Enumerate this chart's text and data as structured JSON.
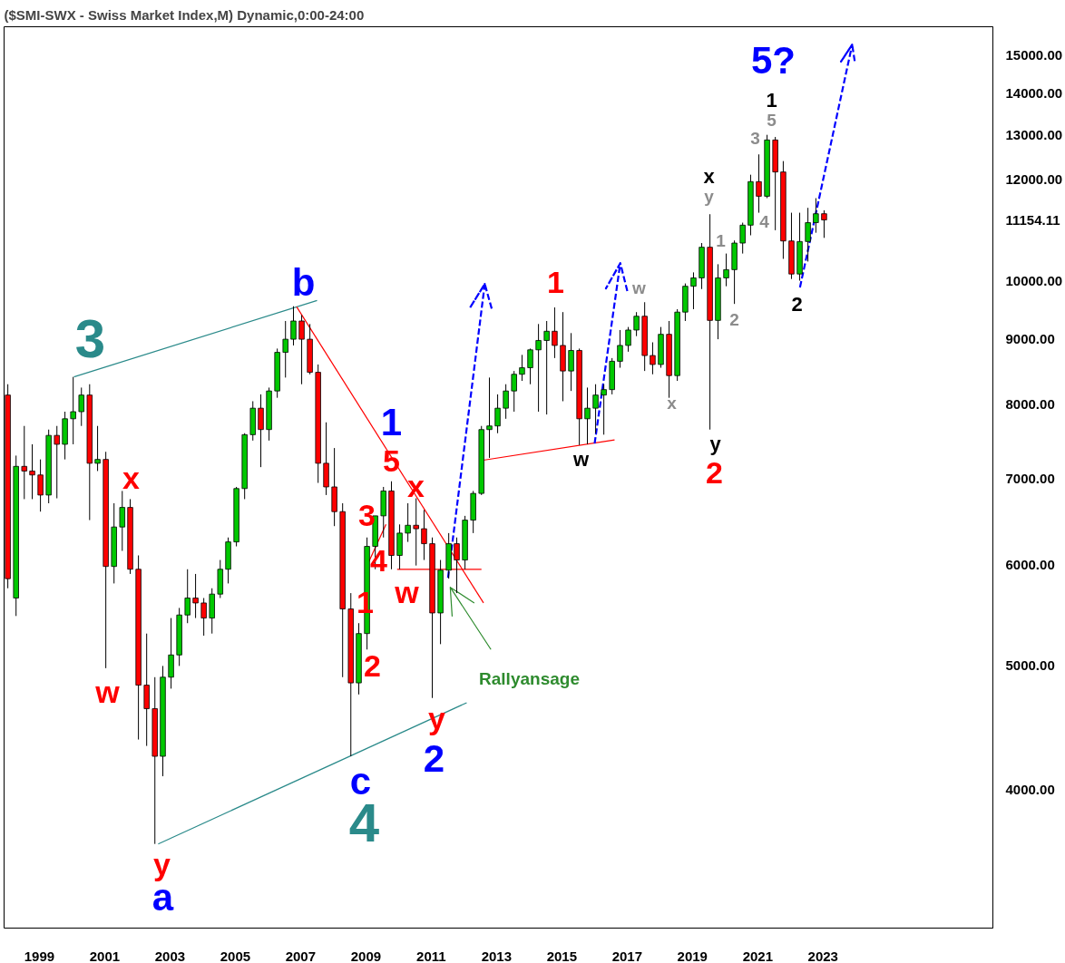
{
  "chart_data": {
    "type": "candlestick",
    "title": "($SMI-SWX - Swiss Market Index,M) Dynamic,0:00-24:00",
    "x": [
      "1998-08",
      "1998-11",
      "1999-02",
      "1999-05",
      "1999-08",
      "1999-11",
      "2000-02",
      "2000-05",
      "2000-08",
      "2000-11",
      "2001-02",
      "2001-05",
      "2001-08",
      "2001-11",
      "2002-02",
      "2002-05",
      "2002-08",
      "2002-11",
      "2003-02",
      "2003-05",
      "2003-08",
      "2003-11",
      "2004-02",
      "2004-05",
      "2004-08",
      "2004-11",
      "2005-02",
      "2005-05",
      "2005-08",
      "2005-11",
      "2006-02",
      "2006-05",
      "2006-08",
      "2006-11",
      "2007-02",
      "2007-05",
      "2007-08",
      "2007-11",
      "2008-02",
      "2008-05",
      "2008-08",
      "2008-11",
      "2009-02",
      "2009-05",
      "2009-08",
      "2009-11",
      "2010-02",
      "2010-05",
      "2010-08",
      "2010-11",
      "2011-02",
      "2011-05",
      "2011-08",
      "2011-11",
      "2012-02",
      "2012-05",
      "2012-08",
      "2012-11",
      "2013-02",
      "2013-05",
      "2013-08",
      "2013-11",
      "2014-02",
      "2014-05",
      "2014-08",
      "2014-11",
      "2015-02",
      "2015-05",
      "2015-08",
      "2015-11",
      "2016-02",
      "2016-05",
      "2016-08",
      "2016-11",
      "2017-02",
      "2017-05",
      "2017-08",
      "2017-11",
      "2018-02",
      "2018-05",
      "2018-08",
      "2018-11",
      "2019-02",
      "2019-05",
      "2019-08",
      "2019-11",
      "2020-02",
      "2020-05",
      "2020-08",
      "2020-11",
      "2021-02",
      "2021-05",
      "2021-08",
      "2021-11",
      "2022-02",
      "2022-05",
      "2022-08",
      "2022-11",
      "2023-02",
      "2023-05",
      "2023-08"
    ],
    "ohlc": [
      [
        8140,
        8300,
        5750,
        5850
      ],
      [
        5650,
        7300,
        5470,
        7160
      ],
      [
        7160,
        7700,
        6750,
        7100
      ],
      [
        7100,
        7450,
        6750,
        7050
      ],
      [
        7050,
        7250,
        6600,
        6800
      ],
      [
        6800,
        7650,
        6700,
        7570
      ],
      [
        7570,
        7700,
        6760,
        7450
      ],
      [
        7450,
        7900,
        7250,
        7800
      ],
      [
        7800,
        8410,
        7450,
        7900
      ],
      [
        7900,
        8250,
        7700,
        8140
      ],
      [
        8140,
        8300,
        6500,
        7200
      ],
      [
        7200,
        7700,
        7100,
        7250
      ],
      [
        7250,
        7350,
        4980,
        5980
      ],
      [
        5980,
        6700,
        5800,
        6420
      ],
      [
        6420,
        6850,
        6150,
        6650
      ],
      [
        6650,
        6750,
        5900,
        5950
      ],
      [
        5950,
        6100,
        4380,
        4830
      ],
      [
        4830,
        5300,
        4330,
        4630
      ],
      [
        4630,
        4900,
        3630,
        4250
      ],
      [
        4250,
        5000,
        4100,
        4900
      ],
      [
        4900,
        5450,
        4800,
        5100
      ],
      [
        5100,
        5550,
        5000,
        5480
      ],
      [
        5480,
        5950,
        5400,
        5650
      ],
      [
        5650,
        5900,
        5450,
        5600
      ],
      [
        5600,
        5650,
        5280,
        5450
      ],
      [
        5450,
        5750,
        5300,
        5690
      ],
      [
        5690,
        6050,
        5650,
        5950
      ],
      [
        5950,
        6300,
        5800,
        6250
      ],
      [
        6250,
        6900,
        6200,
        6880
      ],
      [
        6880,
        7600,
        6750,
        7580
      ],
      [
        7580,
        8050,
        7500,
        7950
      ],
      [
        7950,
        8150,
        7150,
        7650
      ],
      [
        7650,
        8250,
        7500,
        8200
      ],
      [
        8200,
        8850,
        8100,
        8790
      ],
      [
        8790,
        9300,
        8400,
        9000
      ],
      [
        9000,
        9550,
        8900,
        9300
      ],
      [
        9300,
        9400,
        8300,
        9000
      ],
      [
        9000,
        9250,
        8450,
        8480
      ],
      [
        8480,
        8600,
        6950,
        7200
      ],
      [
        7200,
        7750,
        6800,
        6900
      ],
      [
        6900,
        7400,
        6430,
        6600
      ],
      [
        6600,
        6700,
        4900,
        5540
      ],
      [
        5540,
        5700,
        4250,
        4850
      ],
      [
        4850,
        5400,
        4750,
        5300
      ],
      [
        5300,
        6300,
        5150,
        6200
      ],
      [
        6200,
        6550,
        5950,
        6550
      ],
      [
        6550,
        6900,
        6300,
        6850
      ],
      [
        6850,
        6970,
        5950,
        6100
      ],
      [
        6100,
        6450,
        5950,
        6350
      ],
      [
        6350,
        6700,
        6250,
        6440
      ],
      [
        6440,
        6760,
        5990,
        6400
      ],
      [
        6400,
        6620,
        6050,
        6230
      ],
      [
        6230,
        6300,
        4720,
        5500
      ],
      [
        5500,
        6050,
        5200,
        5940
      ],
      [
        5940,
        6350,
        5850,
        6230
      ],
      [
        6230,
        6300,
        5700,
        6050
      ],
      [
        6050,
        6550,
        5950,
        6500
      ],
      [
        6500,
        6850,
        6350,
        6820
      ],
      [
        6820,
        7700,
        6800,
        7650
      ],
      [
        7650,
        8400,
        7270,
        7700
      ],
      [
        7700,
        8150,
        7600,
        7950
      ],
      [
        7950,
        8300,
        7800,
        8200
      ],
      [
        8200,
        8500,
        7900,
        8450
      ],
      [
        8450,
        8750,
        8350,
        8550
      ],
      [
        8550,
        8850,
        8300,
        8830
      ],
      [
        8830,
        9250,
        7900,
        8980
      ],
      [
        8980,
        9300,
        7860,
        9130
      ],
      [
        9130,
        9530,
        8700,
        8900
      ],
      [
        8900,
        9450,
        8050,
        8500
      ],
      [
        8500,
        9100,
        8200,
        8820
      ],
      [
        8820,
        8850,
        7440,
        7800
      ],
      [
        7800,
        8250,
        7450,
        7950
      ],
      [
        7950,
        8300,
        7600,
        8140
      ],
      [
        8140,
        8300,
        7580,
        8220
      ],
      [
        8220,
        8700,
        8150,
        8650
      ],
      [
        8650,
        9150,
        8550,
        8900
      ],
      [
        8900,
        9200,
        8800,
        9150
      ],
      [
        9150,
        9450,
        9050,
        9380
      ],
      [
        9380,
        9620,
        8500,
        8740
      ],
      [
        8740,
        8950,
        8450,
        8600
      ],
      [
        8600,
        9200,
        8550,
        9080
      ],
      [
        9080,
        9300,
        8100,
        8430
      ],
      [
        8430,
        9500,
        8350,
        9450
      ],
      [
        9450,
        9950,
        9300,
        9900
      ],
      [
        9900,
        10150,
        9500,
        10050
      ],
      [
        10050,
        10700,
        9850,
        10620
      ],
      [
        10620,
        11270,
        7650,
        9310
      ],
      [
        9310,
        10300,
        9000,
        10050
      ],
      [
        10050,
        10500,
        9900,
        10200
      ],
      [
        10200,
        10750,
        9590,
        10700
      ],
      [
        10700,
        11100,
        10500,
        11050
      ],
      [
        11050,
        12100,
        10850,
        11950
      ],
      [
        11950,
        12550,
        11300,
        11640
      ],
      [
        11640,
        13000,
        11600,
        12880
      ],
      [
        12880,
        12950,
        10950,
        12160
      ],
      [
        12160,
        12400,
        10400,
        10740
      ],
      [
        10740,
        11300,
        10030,
        10120
      ],
      [
        10120,
        11300,
        10000,
        10730
      ],
      [
        10730,
        11400,
        10350,
        11100
      ],
      [
        11100,
        11600,
        10900,
        11280
      ],
      [
        11280,
        11350,
        10800,
        11154.11
      ]
    ],
    "colors": [
      "#ff0000",
      "#00c800",
      "#ff0000",
      "#ff0000",
      "#ff0000",
      "#00c800",
      "#ff0000",
      "#00c800",
      "#00c800",
      "#00c800",
      "#ff0000",
      "#00c800",
      "#ff0000",
      "#00c800",
      "#00c800",
      "#ff0000",
      "#ff0000",
      "#ff0000",
      "#ff0000",
      "#00c800",
      "#00c800",
      "#00c800",
      "#00c800",
      "#ff0000",
      "#ff0000",
      "#00c800",
      "#00c800",
      "#00c800",
      "#00c800",
      "#00c800",
      "#00c800",
      "#ff0000",
      "#00c800",
      "#00c800",
      "#00c800",
      "#00c800",
      "#ff0000",
      "#ff0000",
      "#ff0000",
      "#ff0000",
      "#ff0000",
      "#ff0000",
      "#ff0000",
      "#00c800",
      "#00c800",
      "#00c800",
      "#00c800",
      "#ff0000",
      "#00c800",
      "#00c800",
      "#ff0000",
      "#ff0000",
      "#ff0000",
      "#00c800",
      "#00c800",
      "#ff0000",
      "#00c800",
      "#00c800",
      "#00c800",
      "#00c800",
      "#00c800",
      "#00c800",
      "#00c800",
      "#00c800",
      "#00c800",
      "#00c800",
      "#00c800",
      "#ff0000",
      "#ff0000",
      "#00c800",
      "#ff0000",
      "#00c800",
      "#00c800",
      "#00c800",
      "#00c800",
      "#00c800",
      "#00c800",
      "#00c800",
      "#ff0000",
      "#ff0000",
      "#00c800",
      "#ff0000",
      "#00c800",
      "#00c800",
      "#00c800",
      "#00c800",
      "#ff0000",
      "#00c800",
      "#00c800",
      "#00c800",
      "#00c800",
      "#00c800",
      "#ff0000",
      "#00c800",
      "#ff0000",
      "#ff0000",
      "#ff0000",
      "#00c800",
      "#00c800",
      "#00c800",
      "#ff0000"
    ],
    "series": [
      {
        "type": "line",
        "color": "#2a8a8a",
        "x": [
          "2000-08-10",
          "2008-01-20"
        ],
        "values": [
          8410,
          9650
        ]
      },
      {
        "type": "line",
        "color": "#2a8a8a",
        "x": [
          "2003-03-10",
          "2012-08-20"
        ],
        "values": [
          3630,
          4680
        ]
      },
      {
        "type": "line",
        "color": "#ff0000",
        "x": [
          "2007-06-06",
          "2013-02-24"
        ],
        "values": [
          9540,
          5600
        ]
      },
      {
        "type": "line",
        "color": "#ff0000",
        "x": [
          "2010-07-04",
          "2013-02-01"
        ],
        "values": [
          5950,
          5950
        ]
      },
      {
        "type": "line",
        "color": "#ff0000",
        "x": [
          "2009-08-21",
          "2010-03-01"
        ],
        "values": [
          6030,
          6450
        ]
      },
      {
        "type": "line",
        "color": "#ff0000",
        "x": [
          "2013-02-21",
          "2017-03-01"
        ],
        "values": [
          7240,
          7510
        ]
      },
      {
        "type": "line",
        "color": "#0000ff",
        "line_style": "dashed",
        "x": [
          "2012-01-24",
          "2013-03-10",
          "2012-09-24",
          "2013-03-10",
          "2013-06-03"
        ],
        "values": [
          5860,
          9940,
          9520,
          9940,
          9470
        ]
      },
      {
        "type": "line",
        "color": "#0000ff",
        "line_style": "dashed",
        "x": [
          "2016-07-21",
          "2017-05-04",
          "2016-11-24",
          "2017-05-04",
          "2017-07-24"
        ],
        "values": [
          7460,
          10320,
          9860,
          10320,
          9800
        ]
      },
      {
        "type": "line",
        "color": "#0000ff",
        "line_style": "dashed",
        "x": [
          "2022-11-04",
          "2024-06-10",
          "2024-02-06",
          "2024-06-10",
          "2024-07-13"
        ],
        "values": [
          9880,
          15290,
          14830,
          15290,
          14770
        ]
      },
      {
        "type": "line",
        "color": "#2e8b2e",
        "x": [
          "2013-05-18",
          "2012-02-18",
          "2012-03-10",
          "2012-02-18",
          "2012-11-13"
        ],
        "values": [
          5150,
          5760,
          5470,
          5760,
          5600
        ]
      }
    ],
    "annotations": [
      "3",
      "4",
      "b",
      "a",
      "c",
      "1",
      "2",
      "5?",
      "x",
      "w",
      "y",
      "5",
      "3",
      "4",
      "x",
      "w",
      "1",
      "2",
      "y",
      "1",
      "2",
      "x",
      "y",
      "1",
      "2",
      "w",
      "y",
      "1",
      "2",
      "3",
      "4",
      "5",
      "w",
      "x",
      "Rallyansage"
    ],
    "xlim": [
      "1998-06-20",
      "2028-10-01"
    ],
    "xticks": [
      {
        "value": "1999-07-20",
        "label": "1999"
      },
      {
        "value": "2001-07-20",
        "label": "2001"
      },
      {
        "value": "2003-07-20",
        "label": "2003"
      },
      {
        "value": "2005-07-20",
        "label": "2005"
      },
      {
        "value": "2007-07-20",
        "label": "2007"
      },
      {
        "value": "2009-07-20",
        "label": "2009"
      },
      {
        "value": "2011-07-20",
        "label": "2011"
      },
      {
        "value": "2013-07-20",
        "label": "2013"
      },
      {
        "value": "2015-07-20",
        "label": "2015"
      },
      {
        "value": "2017-07-20",
        "label": "2017"
      },
      {
        "value": "2019-07-20",
        "label": "2019"
      },
      {
        "value": "2021-07-20",
        "label": "2021"
      },
      {
        "value": "2023-07-20",
        "label": "2023"
      }
    ],
    "ylim": [
      3120,
      15790
    ],
    "yticks": [
      {
        "value": 4000,
        "label": "4000.00"
      },
      {
        "value": 5000,
        "label": "5000.00"
      },
      {
        "value": 6000,
        "label": "6000.00"
      },
      {
        "value": 7000,
        "label": "7000.00"
      },
      {
        "value": 8000,
        "label": "8000.00"
      },
      {
        "value": 9000,
        "label": "9000.00"
      },
      {
        "value": 10000,
        "label": "10000.00"
      },
      11154.11,
      {
        "value": 12000,
        "label": "12000.00"
      },
      {
        "value": 13000,
        "label": "13000.00"
      },
      {
        "value": 14000,
        "label": "14000.00"
      },
      {
        "value": 15000,
        "label": "15000.00"
      }
    ],
    "log": true
  }
}
